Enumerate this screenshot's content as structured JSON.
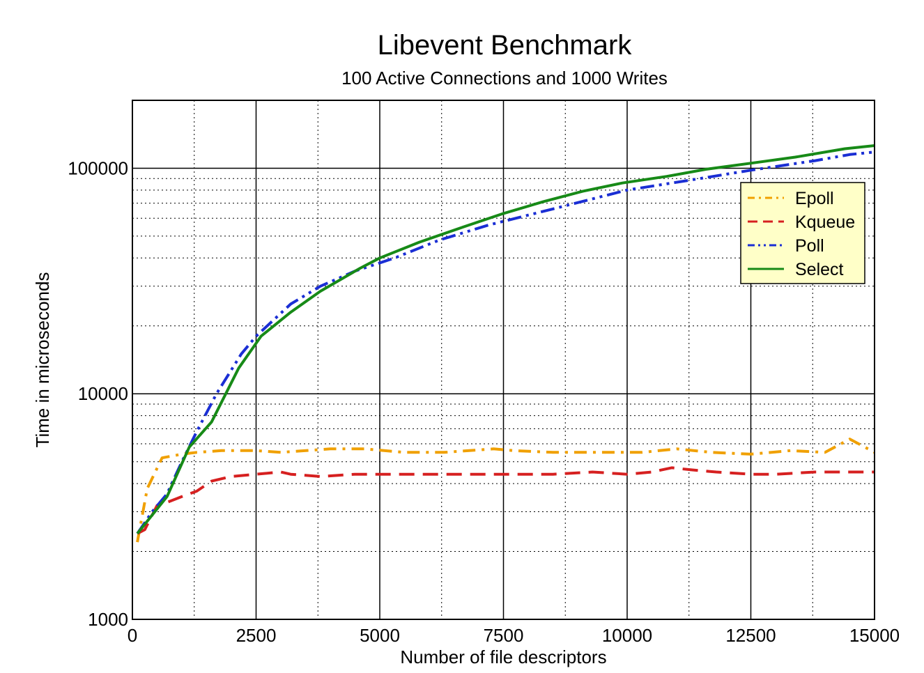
{
  "chart_data": {
    "type": "line",
    "title": "Libevent Benchmark",
    "subtitle": "100 Active Connections and 1000 Writes",
    "xlabel": "Number of file descriptors",
    "ylabel": "Time in microseconds",
    "xlim": [
      0,
      15000
    ],
    "ylim": [
      1000,
      200000
    ],
    "yscale": "log",
    "grid": true,
    "legend_position": "upper-right",
    "x_ticks": [
      0,
      2500,
      5000,
      7500,
      10000,
      12500,
      15000
    ],
    "x_tick_labels": [
      "0",
      "2500",
      "5000",
      "7500",
      "10000",
      "12500",
      "15000"
    ],
    "y_ticks": [
      1000,
      10000,
      100000
    ],
    "y_tick_labels": [
      "1000",
      "10000",
      "100000"
    ],
    "series": [
      {
        "name": "Epoll",
        "color": "#f0a000",
        "dash": "dashdot",
        "x": [
          100,
          300,
          600,
          1000,
          1300,
          1800,
          2500,
          3000,
          4000,
          4700,
          5500,
          6300,
          7300,
          7700,
          8500,
          9300,
          10300,
          11000,
          11700,
          12500,
          13300,
          14000,
          14500,
          15000
        ],
        "y": [
          2200,
          3800,
          5200,
          5400,
          5500,
          5600,
          5600,
          5500,
          5700,
          5700,
          5500,
          5500,
          5700,
          5600,
          5500,
          5500,
          5500,
          5700,
          5500,
          5400,
          5600,
          5500,
          6300,
          5500
        ]
      },
      {
        "name": "Kqueue",
        "color": "#d62020",
        "dash": "dashed",
        "x": [
          100,
          250,
          500,
          700,
          1000,
          1300,
          1600,
          2000,
          2500,
          3000,
          3200,
          3800,
          4500,
          5500,
          6200,
          7000,
          7500,
          8500,
          9300,
          10000,
          10500,
          10900,
          11300,
          11800,
          12500,
          13000,
          13800,
          14200,
          15000
        ],
        "y": [
          2400,
          2500,
          3200,
          3300,
          3500,
          3700,
          4100,
          4300,
          4400,
          4500,
          4400,
          4300,
          4400,
          4400,
          4400,
          4400,
          4400,
          4400,
          4500,
          4400,
          4500,
          4700,
          4600,
          4500,
          4400,
          4400,
          4500,
          4500,
          4500
        ]
      },
      {
        "name": "Poll",
        "color": "#1a2ed4",
        "dash": "dashdotdot",
        "x": [
          100,
          400,
          700,
          1000,
          1300,
          1700,
          2200,
          2500,
          3200,
          3800,
          4500,
          5300,
          6200,
          7200,
          8500,
          10000,
          11200,
          12500,
          13800,
          14500,
          15000
        ],
        "y": [
          2400,
          3000,
          3600,
          5000,
          6800,
          10000,
          15000,
          18000,
          25000,
          30000,
          35000,
          40000,
          48000,
          56000,
          66000,
          80000,
          88000,
          98000,
          108000,
          115000,
          118000
        ]
      },
      {
        "name": "Select",
        "color": "#178a17",
        "dash": "solid",
        "x": [
          100,
          400,
          700,
          1150,
          1600,
          2150,
          2600,
          3200,
          3800,
          4600,
          5000,
          5800,
          6700,
          7500,
          8300,
          9100,
          9900,
          10800,
          11600,
          12600,
          13400,
          14400,
          15000
        ],
        "y": [
          2400,
          2900,
          3500,
          5800,
          7500,
          13000,
          18000,
          23000,
          28500,
          36000,
          40000,
          47000,
          55000,
          63000,
          71000,
          79000,
          86000,
          92000,
          99000,
          106000,
          112000,
          122000,
          126000
        ]
      }
    ]
  }
}
